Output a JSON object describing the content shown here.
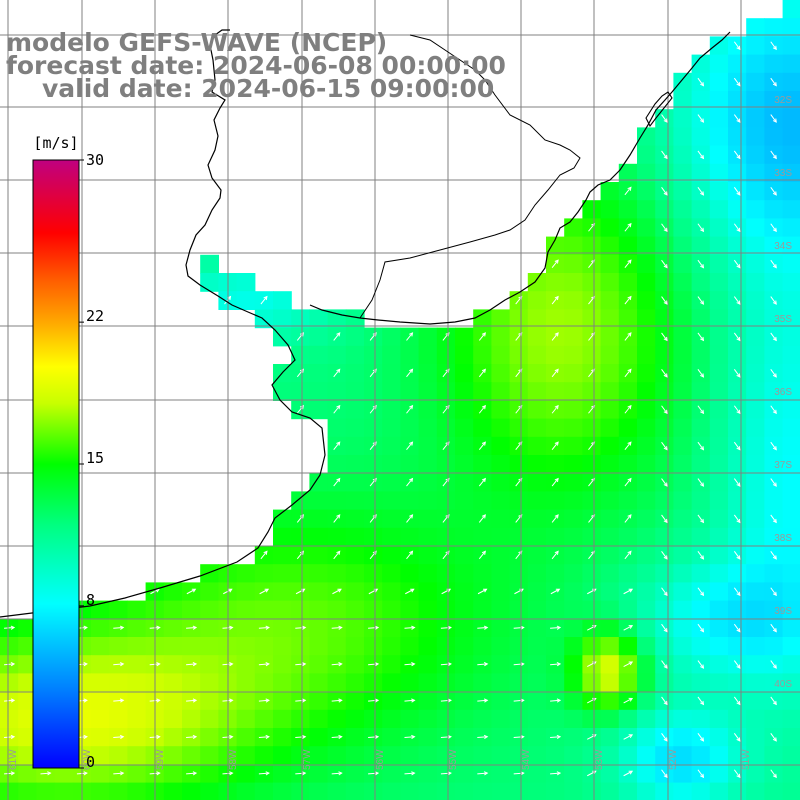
{
  "title": {
    "line1": "modelo GEFS-WAVE (NCEP)",
    "line2": "forecast date: 2024-06-08 00:00:00",
    "line3": "valid date: 2024-06-15 09:00:00"
  },
  "colorbar": {
    "unit": "[m/s]",
    "ticks": [
      "30",
      "22",
      "15",
      "8",
      "0"
    ],
    "tick_values": [
      30,
      22,
      15,
      8,
      0
    ],
    "range": [
      0,
      30
    ]
  },
  "lat_labels": [
    "32S",
    "33S",
    "34S",
    "35S",
    "36S",
    "37S",
    "38S",
    "39S",
    "40S"
  ],
  "lon_labels": [
    "61W",
    "60W",
    "59W",
    "58W",
    "57W",
    "56W",
    "55W",
    "54W",
    "53W",
    "52W",
    "51W"
  ],
  "colors": {
    "background": "#ffffff",
    "grid": "#808080",
    "coast": "#000000",
    "title": "#7f7f7f",
    "arrows": "#ffffff",
    "scale": [
      "#0000ff",
      "#0080ff",
      "#00ffff",
      "#00ff00",
      "#ffff00",
      "#ff8000",
      "#ff0000",
      "#c00080"
    ]
  }
}
